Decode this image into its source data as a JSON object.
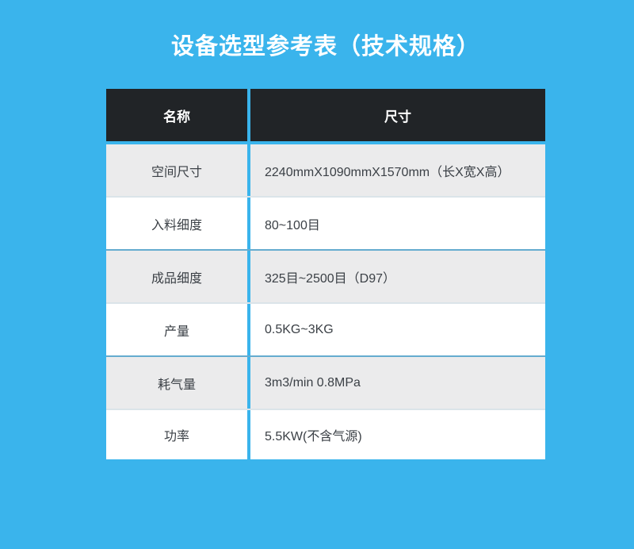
{
  "title": "设备选型参考表（技术规格）",
  "table": {
    "header": {
      "name": "名称",
      "size": "尺寸"
    },
    "rows": [
      {
        "label": "空间尺寸",
        "value": "2240mmX1090mmX1570mm（长X宽X高）"
      },
      {
        "label": "入料细度",
        "value": "80~100目"
      },
      {
        "label": "成品细度",
        "value": "325目~2500目（D97）"
      },
      {
        "label": "产量",
        "value": "0.5KG~3KG"
      },
      {
        "label": "耗气量",
        "value": "3m3/min 0.8MPa"
      },
      {
        "label": "功率",
        "value": "5.5KW(不含气源)"
      }
    ]
  },
  "colors": {
    "background_blue": "#3ab4ec",
    "header_bg": "#212427",
    "header_text": "#ffffff",
    "row_gray_bg": "#ebebec",
    "row_white_bg": "#ffffff",
    "row_divider_strong": "#65accf",
    "row_divider_light": "#dbe4e9",
    "body_text": "#3b4046",
    "title_text": "#ffffff"
  }
}
